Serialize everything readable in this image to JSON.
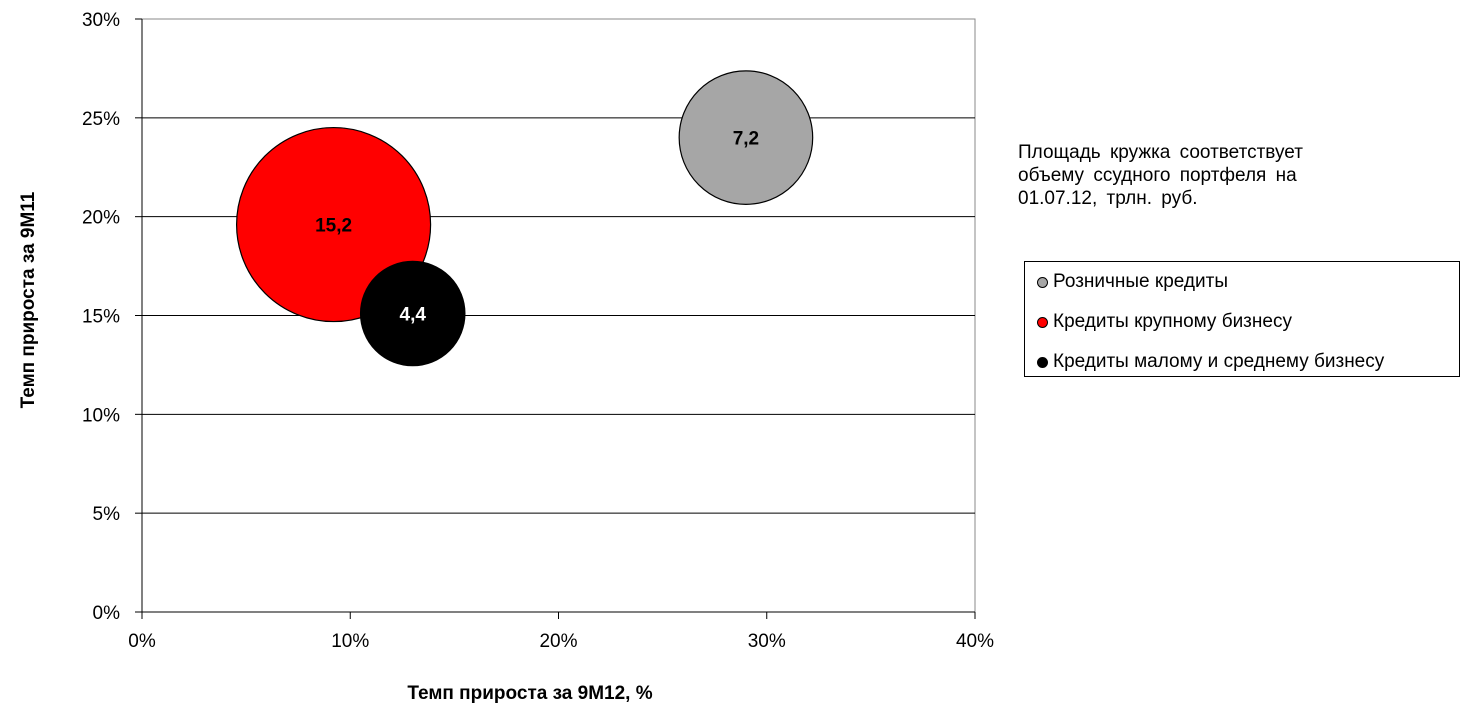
{
  "chart_data": {
    "type": "bubble",
    "xlabel": "Темп прироста за 9М12, %",
    "ylabel": "Темп прироста за 9М11",
    "xlim": [
      0,
      40
    ],
    "ylim": [
      0,
      30
    ],
    "xticks": [
      "0%",
      "10%",
      "20%",
      "30%",
      "40%"
    ],
    "yticks": [
      "0%",
      "5%",
      "10%",
      "15%",
      "20%",
      "25%",
      "30%"
    ],
    "grid": "horizontal",
    "legend_position": "right",
    "note": "Площадь кружка соответствует\nобъему ссудного портфеля на\n01.07.12, трлн. руб.",
    "series": [
      {
        "name": "Розничные кредиты",
        "x": 29,
        "y": 24,
        "size": 7.2,
        "label": "7,2",
        "color": "#a6a6a6",
        "label_color": "#000000"
      },
      {
        "name": "Кредиты крупному бизнесу",
        "x": 9.2,
        "y": 19.6,
        "size": 15.2,
        "label": "15,2",
        "color": "#ff0000",
        "label_color": "#000000"
      },
      {
        "name": "Кредиты малому и среднему бизнесу",
        "x": 13,
        "y": 15.1,
        "size": 4.4,
        "label": "4,4",
        "color": "#000000",
        "label_color": "#ffffff"
      }
    ]
  }
}
